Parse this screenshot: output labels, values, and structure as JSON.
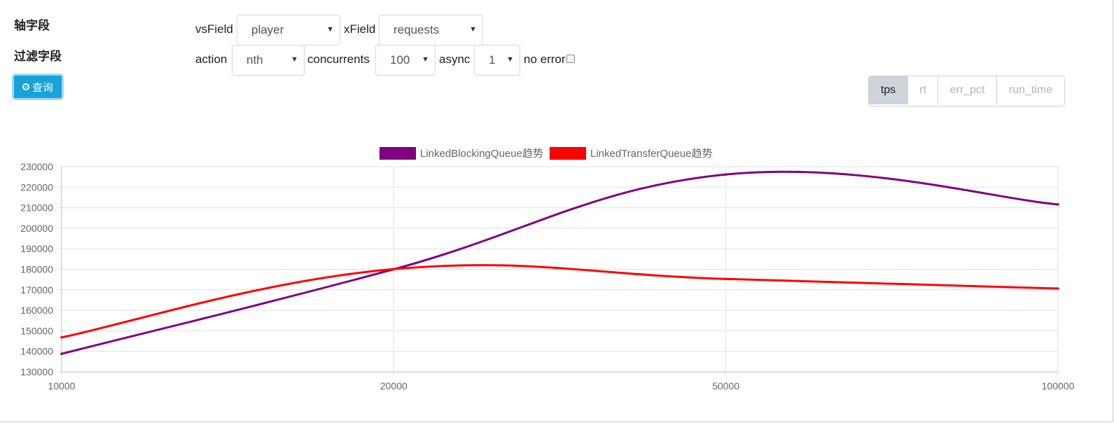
{
  "sidebar": {
    "axis_label": "轴字段",
    "filter_label": "过滤字段",
    "query_button": "查询"
  },
  "controls": {
    "vsField_label": "vsField",
    "vsField_value": "player",
    "xField_label": "xField",
    "xField_value": "requests",
    "action_label": "action",
    "action_value": "nth",
    "concurrents_label": "concurrents",
    "concurrents_value": "100",
    "async_label": "async",
    "async_value": "1",
    "no_error_label": "no error"
  },
  "metric_buttons": [
    {
      "label": "tps",
      "active": true
    },
    {
      "label": "rt",
      "active": false
    },
    {
      "label": "err_pct",
      "active": false
    },
    {
      "label": "run_time",
      "active": false
    }
  ],
  "chart_data": {
    "type": "line",
    "categories": [
      "10000",
      "20000",
      "50000",
      "100000"
    ],
    "series": [
      {
        "name": "LinkedBlockingQueue趋势",
        "color": "#800080",
        "values": [
          138800,
          180000,
          226200,
          211600
        ]
      },
      {
        "name": "LinkedTransferQueue趋势",
        "color": "#ff0000",
        "values": [
          146800,
          180100,
          175300,
          170600
        ]
      }
    ],
    "y_ticks": [
      "130000",
      "140000",
      "150000",
      "160000",
      "170000",
      "180000",
      "190000",
      "200000",
      "210000",
      "220000",
      "230000"
    ],
    "ylim": [
      130000,
      230000
    ],
    "grid": true,
    "legend": "top-center"
  }
}
